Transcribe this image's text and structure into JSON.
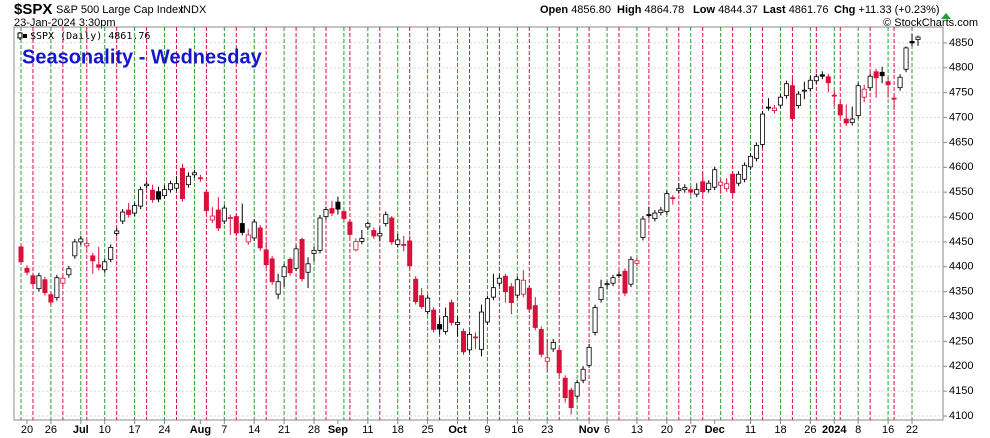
{
  "chart_data": {
    "type": "candlestick",
    "symbol": "$SPX",
    "name": "S&P 500 Large Cap Index",
    "exchange": "INDX",
    "timestamp": "23-Jan-2024 3:30pm",
    "quote": [
      {
        "label": "Open",
        "value": "4856.80"
      },
      {
        "label": "High",
        "value": "4864.78"
      },
      {
        "label": "Low",
        "value": "4844.37"
      },
      {
        "label": "Last",
        "value": "4861.76"
      },
      {
        "label": "Chg",
        "value": "+11.33 (+0.23%)"
      }
    ],
    "copyright": "© StockCharts.com",
    "legend": "$SPX (Daily) 4861.76",
    "title": "Seasonality - Wednesday",
    "categories": [
      null,
      "20",
      null,
      null,
      null,
      "26",
      null,
      null,
      null,
      null,
      "Jul",
      null,
      null,
      null,
      "10",
      null,
      null,
      null,
      null,
      "17",
      null,
      null,
      null,
      null,
      "24",
      null,
      null,
      null,
      null,
      null,
      "Aug",
      null,
      null,
      null,
      "7",
      null,
      null,
      null,
      null,
      "14",
      null,
      null,
      null,
      null,
      "21",
      null,
      null,
      null,
      null,
      "28",
      null,
      null,
      null,
      "Sep",
      null,
      null,
      null,
      null,
      "11",
      null,
      null,
      null,
      null,
      "18",
      null,
      null,
      null,
      null,
      "25",
      null,
      null,
      null,
      null,
      "Oct",
      null,
      null,
      null,
      null,
      "9",
      null,
      null,
      null,
      null,
      "16",
      null,
      null,
      null,
      null,
      "23",
      null,
      null,
      null,
      null,
      null,
      null,
      "Nov",
      null,
      null,
      "6",
      null,
      null,
      null,
      null,
      "13",
      null,
      null,
      null,
      null,
      "20",
      null,
      null,
      null,
      "27",
      null,
      null,
      null,
      "Dec",
      null,
      null,
      null,
      null,
      null,
      "11",
      null,
      null,
      null,
      null,
      "18",
      null,
      null,
      null,
      null,
      "26",
      null,
      null,
      null,
      "2024",
      null,
      null,
      null,
      "8",
      null,
      null,
      null,
      null,
      "16",
      null,
      null,
      null,
      "22",
      null
    ],
    "open": [
      4440,
      4397,
      4382,
      4356,
      4374,
      4344,
      4338,
      4367,
      4384,
      4422,
      4450,
      4442,
      4422,
      4404,
      4394,
      4415,
      4467,
      4492,
      4514,
      4508,
      4522,
      4563,
      4554,
      4551,
      4543,
      4555,
      4558,
      4598,
      4565,
      4585,
      4579,
      4550,
      4494,
      4514,
      4492,
      4498,
      4501,
      4487,
      4450,
      4458,
      4478,
      4434,
      4416,
      4345,
      4380,
      4415,
      4397,
      4455,
      4389,
      4427,
      4433,
      4501,
      4517,
      4530,
      4511,
      4490,
      4434,
      4451,
      4480,
      4473,
      4462,
      4487,
      4498,
      4445,
      4445,
      4452,
      4375,
      4342,
      4310,
      4313,
      4284,
      4270,
      4328,
      4284,
      4270,
      4233,
      4259,
      4234,
      4289,
      4339,
      4367,
      4381,
      4360,
      4343,
      4345,
      4357,
      4322,
      4274,
      4210,
      4235,
      4232,
      4176,
      4152,
      4140,
      4172,
      4202,
      4268,
      4334,
      4364,
      4367,
      4384,
      4391,
      4365,
      4407,
      4459,
      4505,
      4497,
      4509,
      4511,
      4539,
      4553,
      4555,
      4555,
      4546,
      4571,
      4555,
      4560,
      4564,
      4557,
      4586,
      4568,
      4576,
      4601,
      4618,
      4646,
      4721,
      4714,
      4725,
      4744,
      4764,
      4724,
      4753,
      4758,
      4774,
      4786,
      4782,
      4745,
      4726,
      4697,
      4690,
      4704,
      4741,
      4760,
      4792,
      4791,
      4772,
      4739,
      4760,
      4797,
      4853,
      4856.8
    ],
    "high": [
      4446,
      4403,
      4388,
      4388,
      4380,
      4350,
      4384,
      4383,
      4402,
      4456,
      4462,
      4453,
      4428,
      4440,
      4416,
      4445,
      4478,
      4516,
      4528,
      4529,
      4561,
      4572,
      4565,
      4561,
      4564,
      4573,
      4582,
      4607,
      4590,
      4595,
      4585,
      4556,
      4520,
      4540,
      4524,
      4505,
      4507,
      4527,
      4476,
      4496,
      4484,
      4450,
      4422,
      4386,
      4406,
      4419,
      4443,
      4459,
      4419,
      4440,
      4504,
      4521,
      4532,
      4541,
      4514,
      4496,
      4457,
      4474,
      4490,
      4479,
      4479,
      4511,
      4502,
      4466,
      4462,
      4462,
      4381,
      4357,
      4343,
      4319,
      4298,
      4318,
      4334,
      4300,
      4276,
      4270,
      4268,
      4324,
      4342,
      4386,
      4384,
      4386,
      4367,
      4380,
      4393,
      4363,
      4339,
      4280,
      4255,
      4255,
      4238,
      4182,
      4157,
      4173,
      4200,
      4245,
      4324,
      4374,
      4372,
      4384,
      4391,
      4397,
      4421,
      4418,
      4502,
      4521,
      4514,
      4520,
      4553,
      4544,
      4568,
      4566,
      4561,
      4568,
      4588,
      4574,
      4601,
      4576,
      4578,
      4591,
      4592,
      4610,
      4628,
      4650,
      4713,
      4739,
      4725,
      4747,
      4774,
      4779,
      4753,
      4772,
      4784,
      4788,
      4793,
      4788,
      4754,
      4732,
      4726,
      4722,
      4770,
      4766,
      4789,
      4798,
      4802,
      4782,
      4744,
      4787,
      4843,
      4868,
      4864.78
    ],
    "low": [
      4404,
      4383,
      4360,
      4350,
      4342,
      4323,
      4332,
      4361,
      4378,
      4416,
      4444,
      4436,
      4386,
      4393,
      4388,
      4409,
      4461,
      4486,
      4499,
      4502,
      4516,
      4557,
      4529,
      4530,
      4537,
      4549,
      4552,
      4531,
      4559,
      4579,
      4571,
      4507,
      4488,
      4472,
      4486,
      4464,
      4462,
      4463,
      4444,
      4452,
      4432,
      4398,
      4364,
      4335,
      4360,
      4382,
      4391,
      4370,
      4357,
      4411,
      4427,
      4495,
      4502,
      4505,
      4491,
      4459,
      4431,
      4445,
      4474,
      4456,
      4451,
      4481,
      4444,
      4439,
      4431,
      4396,
      4324,
      4315,
      4304,
      4268,
      4264,
      4264,
      4282,
      4260,
      4223,
      4227,
      4235,
      4220,
      4283,
      4333,
      4361,
      4328,
      4305,
      4337,
      4339,
      4309,
      4272,
      4218,
      4190,
      4229,
      4181,
      4127,
      4103,
      4134,
      4166,
      4197,
      4262,
      4328,
      4354,
      4361,
      4377,
      4341,
      4359,
      4401,
      4453,
      4497,
      4491,
      4503,
      4505,
      4525,
      4547,
      4549,
      4544,
      4540,
      4545,
      4549,
      4554,
      4547,
      4551,
      4543,
      4562,
      4570,
      4595,
      4612,
      4640,
      4714,
      4708,
      4719,
      4738,
      4692,
      4718,
      4737,
      4752,
      4768,
      4777,
      4751,
      4723,
      4699,
      4683,
      4684,
      4698,
      4731,
      4754,
      4740,
      4769,
      4740,
      4715,
      4754,
      4791,
      4843,
      4844.37
    ],
    "close": [
      4410,
      4389,
      4366,
      4382,
      4348,
      4329,
      4378,
      4377,
      4396,
      4450,
      4456,
      4447,
      4412,
      4399,
      4410,
      4439,
      4472,
      4510,
      4505,
      4523,
      4555,
      4566,
      4535,
      4536,
      4555,
      4567,
      4567,
      4537,
      4582,
      4589,
      4577,
      4513,
      4502,
      4478,
      4518,
      4499,
      4468,
      4469,
      4464,
      4490,
      4438,
      4404,
      4370,
      4370,
      4400,
      4388,
      4436,
      4376,
      4406,
      4433,
      4498,
      4515,
      4508,
      4516,
      4497,
      4465,
      4451,
      4457,
      4487,
      4462,
      4467,
      4505,
      4450,
      4454,
      4444,
      4402,
      4330,
      4320,
      4337,
      4274,
      4275,
      4300,
      4288,
      4288,
      4229,
      4264,
      4258,
      4309,
      4336,
      4358,
      4377,
      4350,
      4328,
      4374,
      4373,
      4315,
      4278,
      4224,
      4217,
      4248,
      4187,
      4137,
      4117,
      4167,
      4194,
      4238,
      4318,
      4358,
      4366,
      4378,
      4383,
      4347,
      4415,
      4412,
      4496,
      4503,
      4508,
      4514,
      4547,
      4538,
      4557,
      4559,
      4550,
      4555,
      4551,
      4568,
      4595,
      4570,
      4567,
      4549,
      4586,
      4604,
      4622,
      4644,
      4707,
      4720,
      4719,
      4741,
      4768,
      4698,
      4747,
      4755,
      4775,
      4782,
      4783,
      4770,
      4743,
      4705,
      4689,
      4697,
      4764,
      4757,
      4783,
      4780,
      4784,
      4766,
      4739,
      4781,
      4840,
      4850,
      4861.76
    ],
    "up_color": "#000000",
    "down_color": "#d8103b",
    "vlines": [
      {
        "color": "#2a9d2a",
        "at": [
          0,
          5,
          10,
          14,
          19,
          24,
          29,
          34,
          39,
          44,
          49,
          54,
          58,
          63,
          68,
          73,
          78,
          83,
          88,
          93,
          98,
          103,
          108,
          112,
          117,
          122,
          127,
          132,
          136,
          140,
          145,
          149
        ]
      },
      {
        "color": "#d8103b",
        "at": [
          2,
          7,
          11,
          16,
          21,
          26,
          31,
          36,
          41,
          46,
          51,
          55,
          60,
          65,
          70,
          75,
          80,
          85,
          90,
          95,
          100,
          105,
          110,
          114,
          119,
          124,
          129,
          133,
          137,
          142,
          146
        ]
      }
    ],
    "ylim": [
      4092,
      4882
    ],
    "yticks": [
      4100,
      4150,
      4200,
      4250,
      4300,
      4350,
      4400,
      4450,
      4500,
      4550,
      4600,
      4650,
      4700,
      4750,
      4800,
      4850
    ],
    "grid": true
  }
}
